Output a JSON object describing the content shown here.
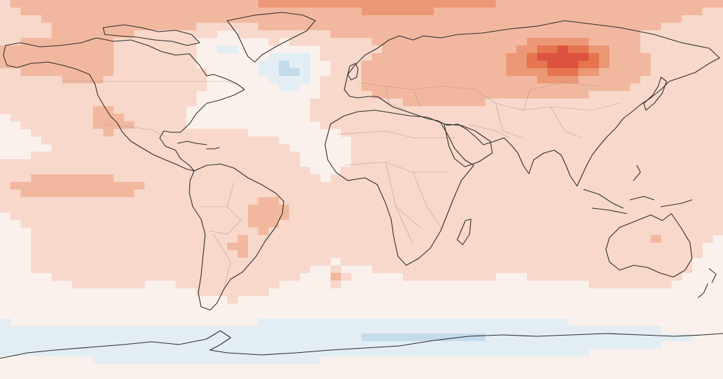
{
  "map": {
    "type": "gridded-temperature-anomaly",
    "projection": "equirectangular",
    "extent": {
      "lon": [
        -180,
        180
      ],
      "lat": [
        -90,
        90
      ]
    },
    "colors": {
      "background": "#fbf1ec",
      "coastline": "#2b2b2b",
      "country_borders": "#a08d86",
      "scale": {
        "-3": "#9cc6e0",
        "-2": "#c3dcec",
        "-1": "#e3edf4",
        "0": "#fbf1ec",
        "1": "#f7d8ca",
        "2": "#f2b89f",
        "3": "#ec9876",
        "4": "#e6744f",
        "5": "#dd5240"
      }
    },
    "anomaly_regions": [
      {
        "region": "arctic-ocean",
        "level": 3
      },
      {
        "region": "alaska-yukon",
        "level": 3
      },
      {
        "region": "central-siberia",
        "level": 5
      },
      {
        "region": "north-eurasia",
        "level": 3
      },
      {
        "region": "europe",
        "level": 2
      },
      {
        "region": "labrador-sea",
        "level": -2
      },
      {
        "region": "north-atlantic",
        "level": -1
      },
      {
        "region": "eastern-brazil",
        "level": 3
      },
      {
        "region": "southern-ocean",
        "level": -2
      },
      {
        "region": "east-antarctica-coast",
        "level": -3
      },
      {
        "region": "tropical-pacific",
        "level": 2
      }
    ]
  }
}
